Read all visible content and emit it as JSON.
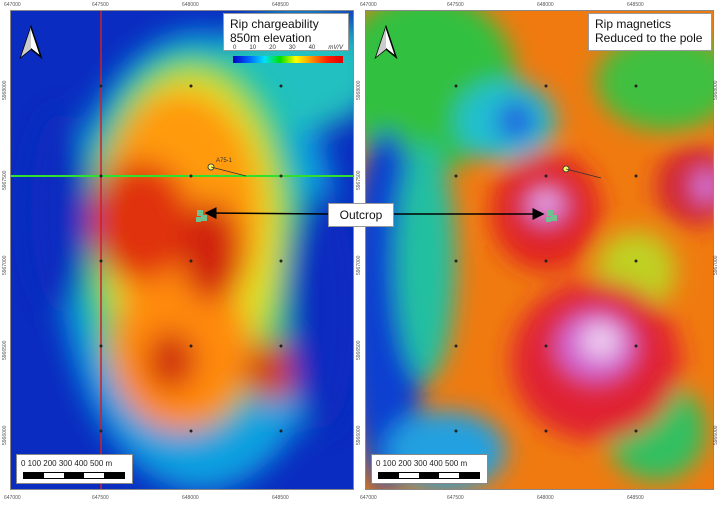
{
  "left_map": {
    "title_line1": "Rip chargeability",
    "title_line2": "850m elevation",
    "legend": {
      "ticks": [
        "0",
        "10",
        "20",
        "30",
        "40"
      ],
      "unit": "mV/V",
      "colors": [
        "#0000c0",
        "#00e0ff",
        "#00e000",
        "#ffff00",
        "#ff9000",
        "#e00000"
      ]
    },
    "drillhole_label": "A75-1",
    "scale_label": "0 100 200 300 400 500 m",
    "x_ticks": [
      "647000",
      "647500",
      "648000",
      "648500"
    ],
    "y_ticks": [
      "5968000",
      "5967500",
      "5967000",
      "5966500",
      "5966000"
    ],
    "section_line_colors": {
      "vertical": "#d02020",
      "horizontal": "#30e030"
    }
  },
  "right_map": {
    "title_line1": "Rip magnetics",
    "title_line2": "Reduced to the pole",
    "scale_label": "0 100 200 300 400 500 m",
    "x_ticks": [
      "647000",
      "647500",
      "648000",
      "648500"
    ],
    "y_ticks": [
      "5968000",
      "5967500",
      "5967000",
      "5966500",
      "5966000"
    ]
  },
  "annotation": {
    "outcrop_label": "Outcrop"
  },
  "icons": {
    "north_arrow": "north-arrow-icon"
  }
}
